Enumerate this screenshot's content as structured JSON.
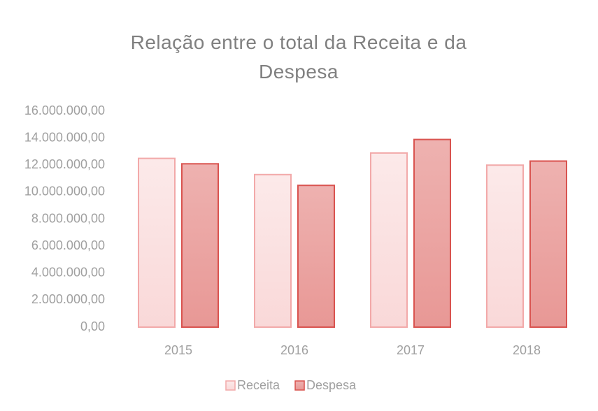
{
  "chart_data": {
    "type": "bar",
    "title": "Relação entre o total da Receita e da Despesa",
    "categories": [
      "2015",
      "2016",
      "2017",
      "2018"
    ],
    "series": [
      {
        "name": "Receita",
        "color": "#f2a9a9",
        "values": [
          12500000,
          11300000,
          12900000,
          12000000
        ]
      },
      {
        "name": "Despesa",
        "color": "#d9534f",
        "values": [
          12100000,
          10500000,
          13900000,
          12300000
        ]
      }
    ],
    "ylim": [
      0,
      16000000
    ],
    "yticks": [
      {
        "value": 0,
        "label": "0,00"
      },
      {
        "value": 2000000,
        "label": "2.000.000,00"
      },
      {
        "value": 4000000,
        "label": "4.000.000,00"
      },
      {
        "value": 6000000,
        "label": "6.000.000,00"
      },
      {
        "value": 8000000,
        "label": "8.000.000,00"
      },
      {
        "value": 10000000,
        "label": "10.000.000,00"
      },
      {
        "value": 12000000,
        "label": "12.000.000,00"
      },
      {
        "value": 14000000,
        "label": "14.000.000,00"
      },
      {
        "value": 16000000,
        "label": "16.000.000,00"
      }
    ],
    "grid": false,
    "legend": "bottom"
  }
}
